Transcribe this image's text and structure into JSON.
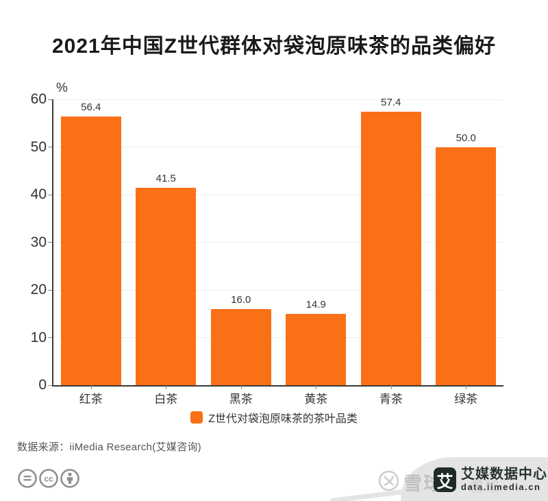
{
  "title": "2021年中国Z世代群体对袋泡原味茶的品类偏好",
  "chart_data": {
    "type": "bar",
    "categories": [
      "红茶",
      "白茶",
      "黑茶",
      "黄茶",
      "青茶",
      "绿茶"
    ],
    "values": [
      56.4,
      41.5,
      16.0,
      14.9,
      57.4,
      50.0
    ],
    "value_labels": [
      "56.4",
      "41.5",
      "16.0",
      "14.9",
      "57.4",
      "50.0"
    ],
    "unit_label": "%",
    "yticks": [
      0,
      10,
      20,
      30,
      40,
      50,
      60
    ],
    "ylim": [
      0,
      60
    ],
    "grid": "horizontal",
    "bar_color": "#fa7017",
    "legend": {
      "label": "Z世代对袋泡原味茶的茶叶品类",
      "position": "bottom"
    }
  },
  "source": {
    "text": "数据来源：iiMedia Research(艾媒咨询)"
  },
  "footer": {
    "license_icons": [
      "equals-circle-icon",
      "cc-circle-icon",
      "person-circle-icon"
    ],
    "watermark": {
      "icon": "xueqiu-circle-x-icon",
      "brand": "雪球",
      "faint_overlay": "雪球"
    },
    "badge": {
      "logo_char": "艾",
      "title": "艾媒数据中心",
      "subtitle": "data.iimedia.cn"
    }
  },
  "colors": {
    "bar": "#fa7017",
    "axis": "#3a3a3a",
    "grid": "#ededed",
    "text": "#333333",
    "source": "#555555",
    "icon_gray": "#8f8f8f",
    "badge_bg": "#1f2b28",
    "watermark": "#a6a6a6",
    "swoosh": "#e4e4e4"
  }
}
